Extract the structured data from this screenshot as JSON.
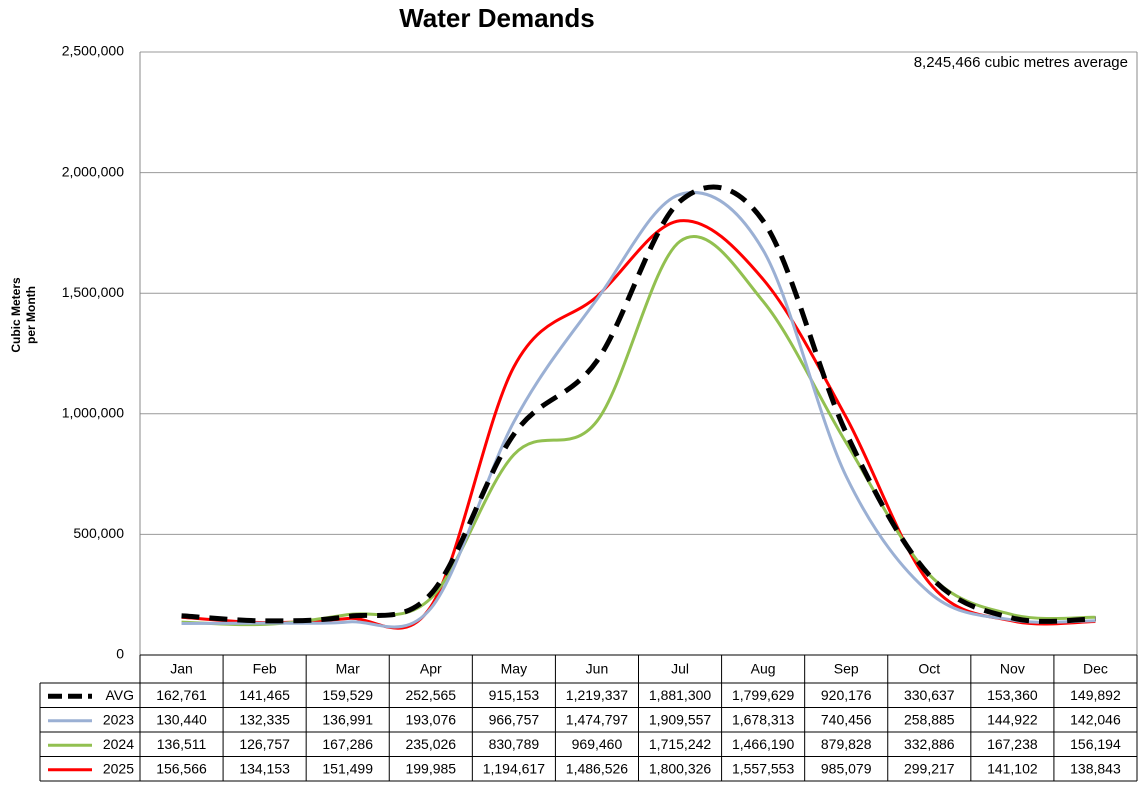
{
  "chart_data": {
    "type": "line",
    "title": "Water Demands",
    "y_label": [
      "Cubic Meters",
      "per Month"
    ],
    "annotation": "8,245,466 cubic metres average",
    "categories": [
      "Jan",
      "Feb",
      "Mar",
      "Apr",
      "May",
      "Jun",
      "Jul",
      "Aug",
      "Sep",
      "Oct",
      "Nov",
      "Dec"
    ],
    "ylim": [
      0,
      2500000
    ],
    "yticks": [
      0,
      {
        "value": 500000,
        "label": "500,000"
      },
      {
        "value": 1000000,
        "label": "1,000,000"
      },
      {
        "value": 1500000,
        "label": "1,500,000"
      },
      {
        "value": 2000000,
        "label": "2,000,000"
      },
      {
        "value": 2500000,
        "label": "2,500,000"
      }
    ],
    "grid": true,
    "smooth": true,
    "series": [
      {
        "name": "AVG",
        "color": "#000000",
        "line_style": "dashed",
        "values": [
          162761,
          141465,
          159529,
          252565,
          915153,
          1219337,
          1881300,
          1799629,
          920176,
          330637,
          153360,
          149892
        ],
        "value_labels": [
          "162,761",
          "141,465",
          "159,529",
          "252,565",
          "915,153",
          "1,219,337",
          "1,881,300",
          "1,799,629",
          "920,176",
          "330,637",
          "153,360",
          "149,892"
        ]
      },
      {
        "name": "2023",
        "color": "#9bb0d4",
        "line_style": "solid",
        "values": [
          130440,
          132335,
          136991,
          193076,
          966757,
          1474797,
          1909557,
          1678313,
          740456,
          258885,
          144922,
          142046
        ],
        "value_labels": [
          "130,440",
          "132,335",
          "136,991",
          "193,076",
          "966,757",
          "1,474,797",
          "1,909,557",
          "1,678,313",
          "740,456",
          "258,885",
          "144,922",
          "142,046"
        ]
      },
      {
        "name": "2024",
        "color": "#92c050",
        "line_style": "solid",
        "values": [
          136511,
          126757,
          167286,
          235026,
          830789,
          969460,
          1715242,
          1466190,
          879828,
          332886,
          167238,
          156194
        ],
        "value_labels": [
          "136,511",
          "126,757",
          "167,286",
          "235,026",
          "830,789",
          "969,460",
          "1,715,242",
          "1,466,190",
          "879,828",
          "332,886",
          "167,238",
          "156,194"
        ]
      },
      {
        "name": "2025",
        "color": "#ff0000",
        "line_style": "solid",
        "values": [
          156566,
          134153,
          151499,
          199985,
          1194617,
          1486526,
          1800326,
          1557553,
          985079,
          299217,
          141102,
          138843
        ],
        "value_labels": [
          "156,566",
          "134,153",
          "151,499",
          "199,985",
          "1,194,617",
          "1,486,526",
          "1,800,326",
          "1,557,553",
          "985,079",
          "299,217",
          "141,102",
          "138,843"
        ]
      }
    ]
  }
}
